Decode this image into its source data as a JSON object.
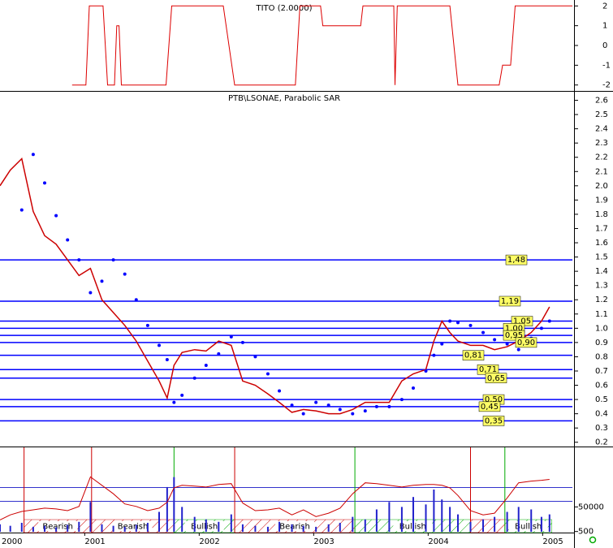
{
  "chart_data": [
    {
      "type": "line",
      "title": "TITO (2.0000)",
      "color": "#dd0000",
      "x": [
        2000.89,
        2001.01,
        2001.04,
        2001.16,
        2001.2,
        2001.26,
        2001.28,
        2001.3,
        2001.32,
        2001.71,
        2001.76,
        2002.21,
        2002.31,
        2002.84,
        2002.88,
        2003.06,
        2003.08,
        2003.41,
        2003.43,
        2003.7,
        2003.71,
        2003.73,
        2004.19,
        2004.26,
        2004.62,
        2004.65,
        2004.72,
        2004.76,
        2005.26
      ],
      "values": [
        -2,
        -2,
        2,
        2,
        -2,
        -2,
        1,
        1,
        -2,
        -2,
        2,
        2,
        -2,
        -2,
        2,
        2,
        1,
        1,
        2,
        2,
        -2,
        2,
        2,
        -2,
        -2,
        -1,
        -1,
        2,
        2
      ],
      "xlim": [
        2000.26,
        2005.26
      ],
      "ylim": [
        -2.3,
        2.3
      ],
      "yticks": [
        2,
        1,
        0,
        -1,
        -2
      ]
    },
    {
      "type": "line",
      "title": "PTB\\LSONAE, Parabolic SAR",
      "x": [
        2000.26,
        2000.35,
        2000.45,
        2000.55,
        2000.65,
        2000.75,
        2000.85,
        2000.95,
        2001.05,
        2001.15,
        2001.25,
        2001.35,
        2001.45,
        2001.55,
        2001.65,
        2001.72,
        2001.78,
        2001.85,
        2001.96,
        2002.06,
        2002.17,
        2002.28,
        2002.38,
        2002.49,
        2002.6,
        2002.7,
        2002.81,
        2002.91,
        2003.02,
        2003.13,
        2003.23,
        2003.34,
        2003.45,
        2003.55,
        2003.66,
        2003.77,
        2003.87,
        2003.98,
        2004.05,
        2004.12,
        2004.19,
        2004.26,
        2004.37,
        2004.48,
        2004.58,
        2004.69,
        2004.79,
        2004.9,
        2004.99,
        2005.06
      ],
      "series": [
        {
          "color": "#cc0000",
          "marker": "line",
          "values": [
            2.0,
            2.11,
            2.19,
            1.82,
            1.65,
            1.59,
            1.48,
            1.37,
            1.42,
            1.2,
            1.11,
            1.02,
            0.91,
            0.77,
            0.63,
            0.51,
            0.74,
            0.83,
            0.85,
            0.84,
            0.91,
            0.88,
            0.63,
            0.6,
            0.54,
            0.48,
            0.41,
            0.43,
            0.42,
            0.4,
            0.4,
            0.43,
            0.48,
            0.48,
            0.48,
            0.63,
            0.68,
            0.71,
            0.91,
            1.05,
            0.97,
            0.91,
            0.88,
            0.88,
            0.85,
            0.87,
            0.91,
            0.97,
            1.05,
            1.15
          ]
        },
        {
          "color": "#0000ff",
          "marker": "dot",
          "values": [
            null,
            null,
            1.83,
            2.22,
            2.02,
            1.79,
            1.62,
            1.48,
            1.25,
            1.33,
            1.48,
            1.38,
            1.2,
            1.02,
            0.88,
            0.78,
            0.48,
            0.53,
            0.65,
            0.74,
            0.82,
            0.94,
            0.9,
            0.8,
            0.68,
            0.56,
            0.46,
            0.4,
            0.48,
            0.46,
            0.43,
            0.4,
            0.42,
            0.45,
            0.45,
            0.5,
            0.58,
            0.7,
            0.81,
            0.89,
            1.05,
            1.04,
            1.02,
            0.97,
            0.92,
            0.89,
            0.85,
            0.93,
            1.0,
            1.05
          ]
        }
      ],
      "levels": {
        "color": "#0000ff",
        "label_color": "#ffff66",
        "values": [
          1.48,
          1.19,
          1.05,
          1.0,
          0.95,
          0.9,
          0.81,
          0.71,
          0.65,
          0.5,
          0.45,
          0.35
        ],
        "value_labels": [
          "1,48",
          "1,19",
          "1,05",
          "1,00",
          "0,95",
          "0,90",
          "0,81",
          "0,71",
          "0,65",
          "0,50",
          "0,45",
          "0,35"
        ]
      },
      "xlim": [
        2000.26,
        2005.26
      ],
      "ylim": [
        0.17,
        2.66
      ],
      "yticks": [
        2.6,
        2.5,
        2.4,
        2.3,
        2.2,
        2.1,
        {
          "value": 2,
          "label": "2.0"
        },
        1.9,
        1.8,
        1.7,
        1.6,
        1.5,
        1.4,
        1.3,
        1.2,
        1.1,
        {
          "value": 1,
          "label": "1.0"
        },
        0.9,
        0.8,
        0.7,
        0.6,
        0.5,
        0.4,
        0.3,
        0.2
      ]
    },
    {
      "type": "bar",
      "x": [
        2000.26,
        2000.35,
        2000.45,
        2000.55,
        2000.65,
        2000.75,
        2000.85,
        2000.95,
        2001.05,
        2001.15,
        2001.25,
        2001.35,
        2001.45,
        2001.55,
        2001.65,
        2001.72,
        2001.78,
        2001.85,
        2001.96,
        2002.06,
        2002.17,
        2002.28,
        2002.38,
        2002.49,
        2002.6,
        2002.7,
        2002.81,
        2002.91,
        2003.02,
        2003.13,
        2003.23,
        2003.34,
        2003.45,
        2003.55,
        2003.66,
        2003.77,
        2003.87,
        2003.98,
        2004.05,
        2004.12,
        2004.19,
        2004.26,
        2004.37,
        2004.48,
        2004.58,
        2004.69,
        2004.79,
        2004.9,
        2004.99,
        2005.06
      ],
      "series": [
        {
          "color": "#2222cc",
          "values": [
            15000,
            12000,
            18000,
            10000,
            12000,
            9000,
            14000,
            20000,
            60000,
            15000,
            12000,
            10000,
            14000,
            18000,
            40000,
            90000,
            110000,
            50000,
            30000,
            25000,
            20000,
            35000,
            15000,
            12000,
            10000,
            20000,
            15000,
            12000,
            10000,
            15000,
            18000,
            30000,
            25000,
            45000,
            60000,
            50000,
            70000,
            55000,
            85000,
            65000,
            50000,
            35000,
            20000,
            25000,
            30000,
            40000,
            50000,
            45000,
            30000,
            35000
          ]
        },
        {
          "color": "#cc0000",
          "axis": "y2",
          "values": [
            14,
            20,
            24,
            26,
            28,
            27,
            25,
            30,
            65,
            55,
            45,
            33,
            30,
            25,
            28,
            35,
            52,
            55,
            54,
            53,
            56,
            57,
            34,
            25,
            26,
            28,
            20,
            26,
            18,
            22,
            28,
            45,
            58,
            57,
            55,
            53,
            55,
            56,
            56,
            55,
            52,
            43,
            25,
            20,
            22,
            40,
            58,
            60,
            61,
            62
          ]
        }
      ],
      "phases": {
        "bounds": [
          2000.47,
          2001.06,
          2001.78,
          2002.31,
          2003.36,
          2004.37,
          2004.67,
          2005.08
        ],
        "labels": [
          "Bearish",
          "Bearish",
          "Bullish",
          "Bearish",
          "Bullish",
          null,
          "Bullish"
        ],
        "colors": [
          "#cc0000",
          "#cc0000",
          "#00aa00",
          "#cc0000",
          "#00aa00",
          "#cc0000",
          "#00aa00"
        ]
      },
      "xlim": [
        2000.26,
        2005.26
      ],
      "xticks": [
        2000,
        2001,
        2002,
        2003,
        2004,
        2005
      ],
      "ylim": [
        0,
        170000
      ],
      "yticks": [
        500,
        50000
      ],
      "y2lim": [
        0,
        100
      ]
    }
  ]
}
